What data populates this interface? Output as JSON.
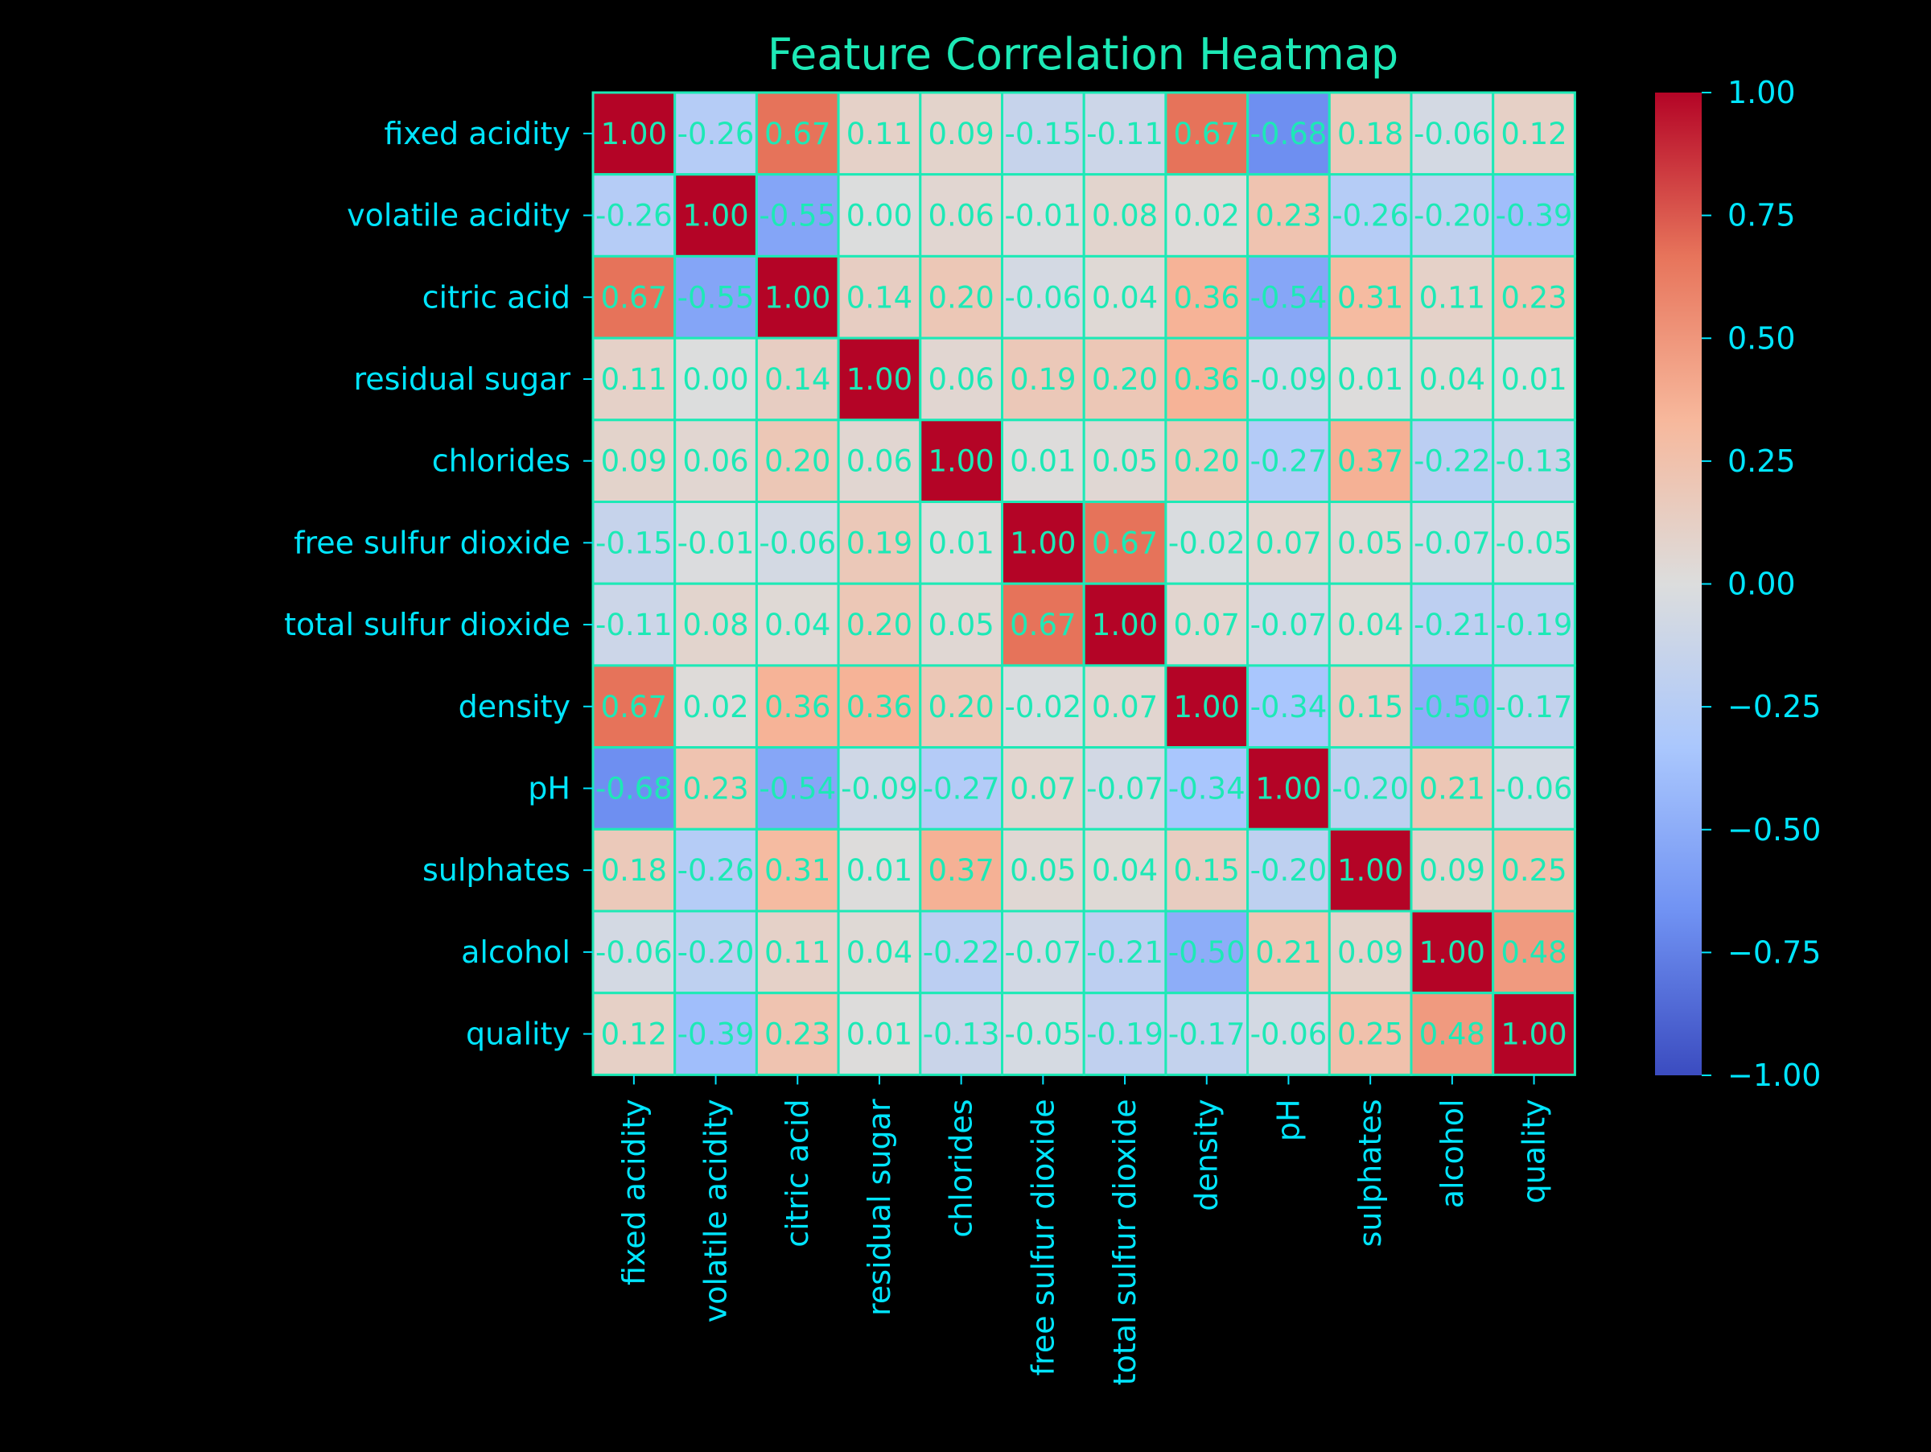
{
  "chart_data": {
    "type": "heatmap",
    "title": "Feature Correlation Heatmap",
    "xlabel": "",
    "ylabel": "",
    "x_labels": [
      "fixed acidity",
      "volatile acidity",
      "citric acid",
      "residual sugar",
      "chlorides",
      "free sulfur dioxide",
      "total sulfur dioxide",
      "density",
      "pH",
      "sulphates",
      "alcohol",
      "quality"
    ],
    "y_labels": [
      "fixed acidity",
      "volatile acidity",
      "citric acid",
      "residual sugar",
      "chlorides",
      "free sulfur dioxide",
      "total sulfur dioxide",
      "density",
      "pH",
      "sulphates",
      "alcohol",
      "quality"
    ],
    "cell_labels": [
      [
        "1.00",
        "-0.26",
        "0.67",
        "0.11",
        "0.09",
        "-0.15",
        "-0.11",
        "0.67",
        "-0.68",
        "0.18",
        "-0.06",
        "0.12"
      ],
      [
        "-0.26",
        "1.00",
        "-0.55",
        "0.00",
        "0.06",
        "-0.01",
        "0.08",
        "0.02",
        "0.23",
        "-0.26",
        "-0.20",
        "-0.39"
      ],
      [
        "0.67",
        "-0.55",
        "1.00",
        "0.14",
        "0.20",
        "-0.06",
        "0.04",
        "0.36",
        "-0.54",
        "0.31",
        "0.11",
        "0.23"
      ],
      [
        "0.11",
        "0.00",
        "0.14",
        "1.00",
        "0.06",
        "0.19",
        "0.20",
        "0.36",
        "-0.09",
        "0.01",
        "0.04",
        "0.01"
      ],
      [
        "0.09",
        "0.06",
        "0.20",
        "0.06",
        "1.00",
        "0.01",
        "0.05",
        "0.20",
        "-0.27",
        "0.37",
        "-0.22",
        "-0.13"
      ],
      [
        "-0.15",
        "-0.01",
        "-0.06",
        "0.19",
        "0.01",
        "1.00",
        "0.67",
        "-0.02",
        "0.07",
        "0.05",
        "-0.07",
        "-0.05"
      ],
      [
        "-0.11",
        "0.08",
        "0.04",
        "0.20",
        "0.05",
        "0.67",
        "1.00",
        "0.07",
        "-0.07",
        "0.04",
        "-0.21",
        "-0.19"
      ],
      [
        "0.67",
        "0.02",
        "0.36",
        "0.36",
        "0.20",
        "-0.02",
        "0.07",
        "1.00",
        "-0.34",
        "0.15",
        "-0.50",
        "-0.17"
      ],
      [
        "-0.68",
        "0.23",
        "-0.54",
        "-0.09",
        "-0.27",
        "0.07",
        "-0.07",
        "-0.34",
        "1.00",
        "-0.20",
        "0.21",
        "-0.06"
      ],
      [
        "0.18",
        "-0.26",
        "0.31",
        "0.01",
        "0.37",
        "0.05",
        "0.04",
        "0.15",
        "-0.20",
        "1.00",
        "0.09",
        "0.25"
      ],
      [
        "-0.06",
        "-0.20",
        "0.11",
        "0.04",
        "-0.22",
        "-0.07",
        "-0.21",
        "-0.50",
        "0.21",
        "0.09",
        "1.00",
        "0.48"
      ],
      [
        "0.12",
        "-0.39",
        "0.23",
        "0.01",
        "-0.13",
        "-0.05",
        "-0.19",
        "-0.17",
        "-0.06",
        "0.25",
        "0.48",
        "1.00"
      ]
    ],
    "colorbar": {
      "range": [
        -1.0,
        1.0
      ],
      "tick_labels": [
        "1.00",
        "0.75",
        "0.50",
        "0.25",
        "0.00",
        "−0.25",
        "−0.50",
        "−0.75",
        "−1.00"
      ],
      "tick_values": [
        1.0,
        0.75,
        0.5,
        0.25,
        0.0,
        -0.25,
        -0.5,
        -0.75,
        -1.0
      ],
      "colormap": "coolwarm"
    },
    "grid": true,
    "legend": "colorbar-right"
  },
  "colors": {
    "background": "#000000",
    "text": "#1de9b6",
    "tick_text": "#00e5ff",
    "cell_border": "#1de9b6",
    "cmap_stops": [
      "#3b4cc0",
      "#7092f3",
      "#aac7fd",
      "#dcdddd",
      "#f7b89c",
      "#e7745b",
      "#b40426"
    ]
  }
}
